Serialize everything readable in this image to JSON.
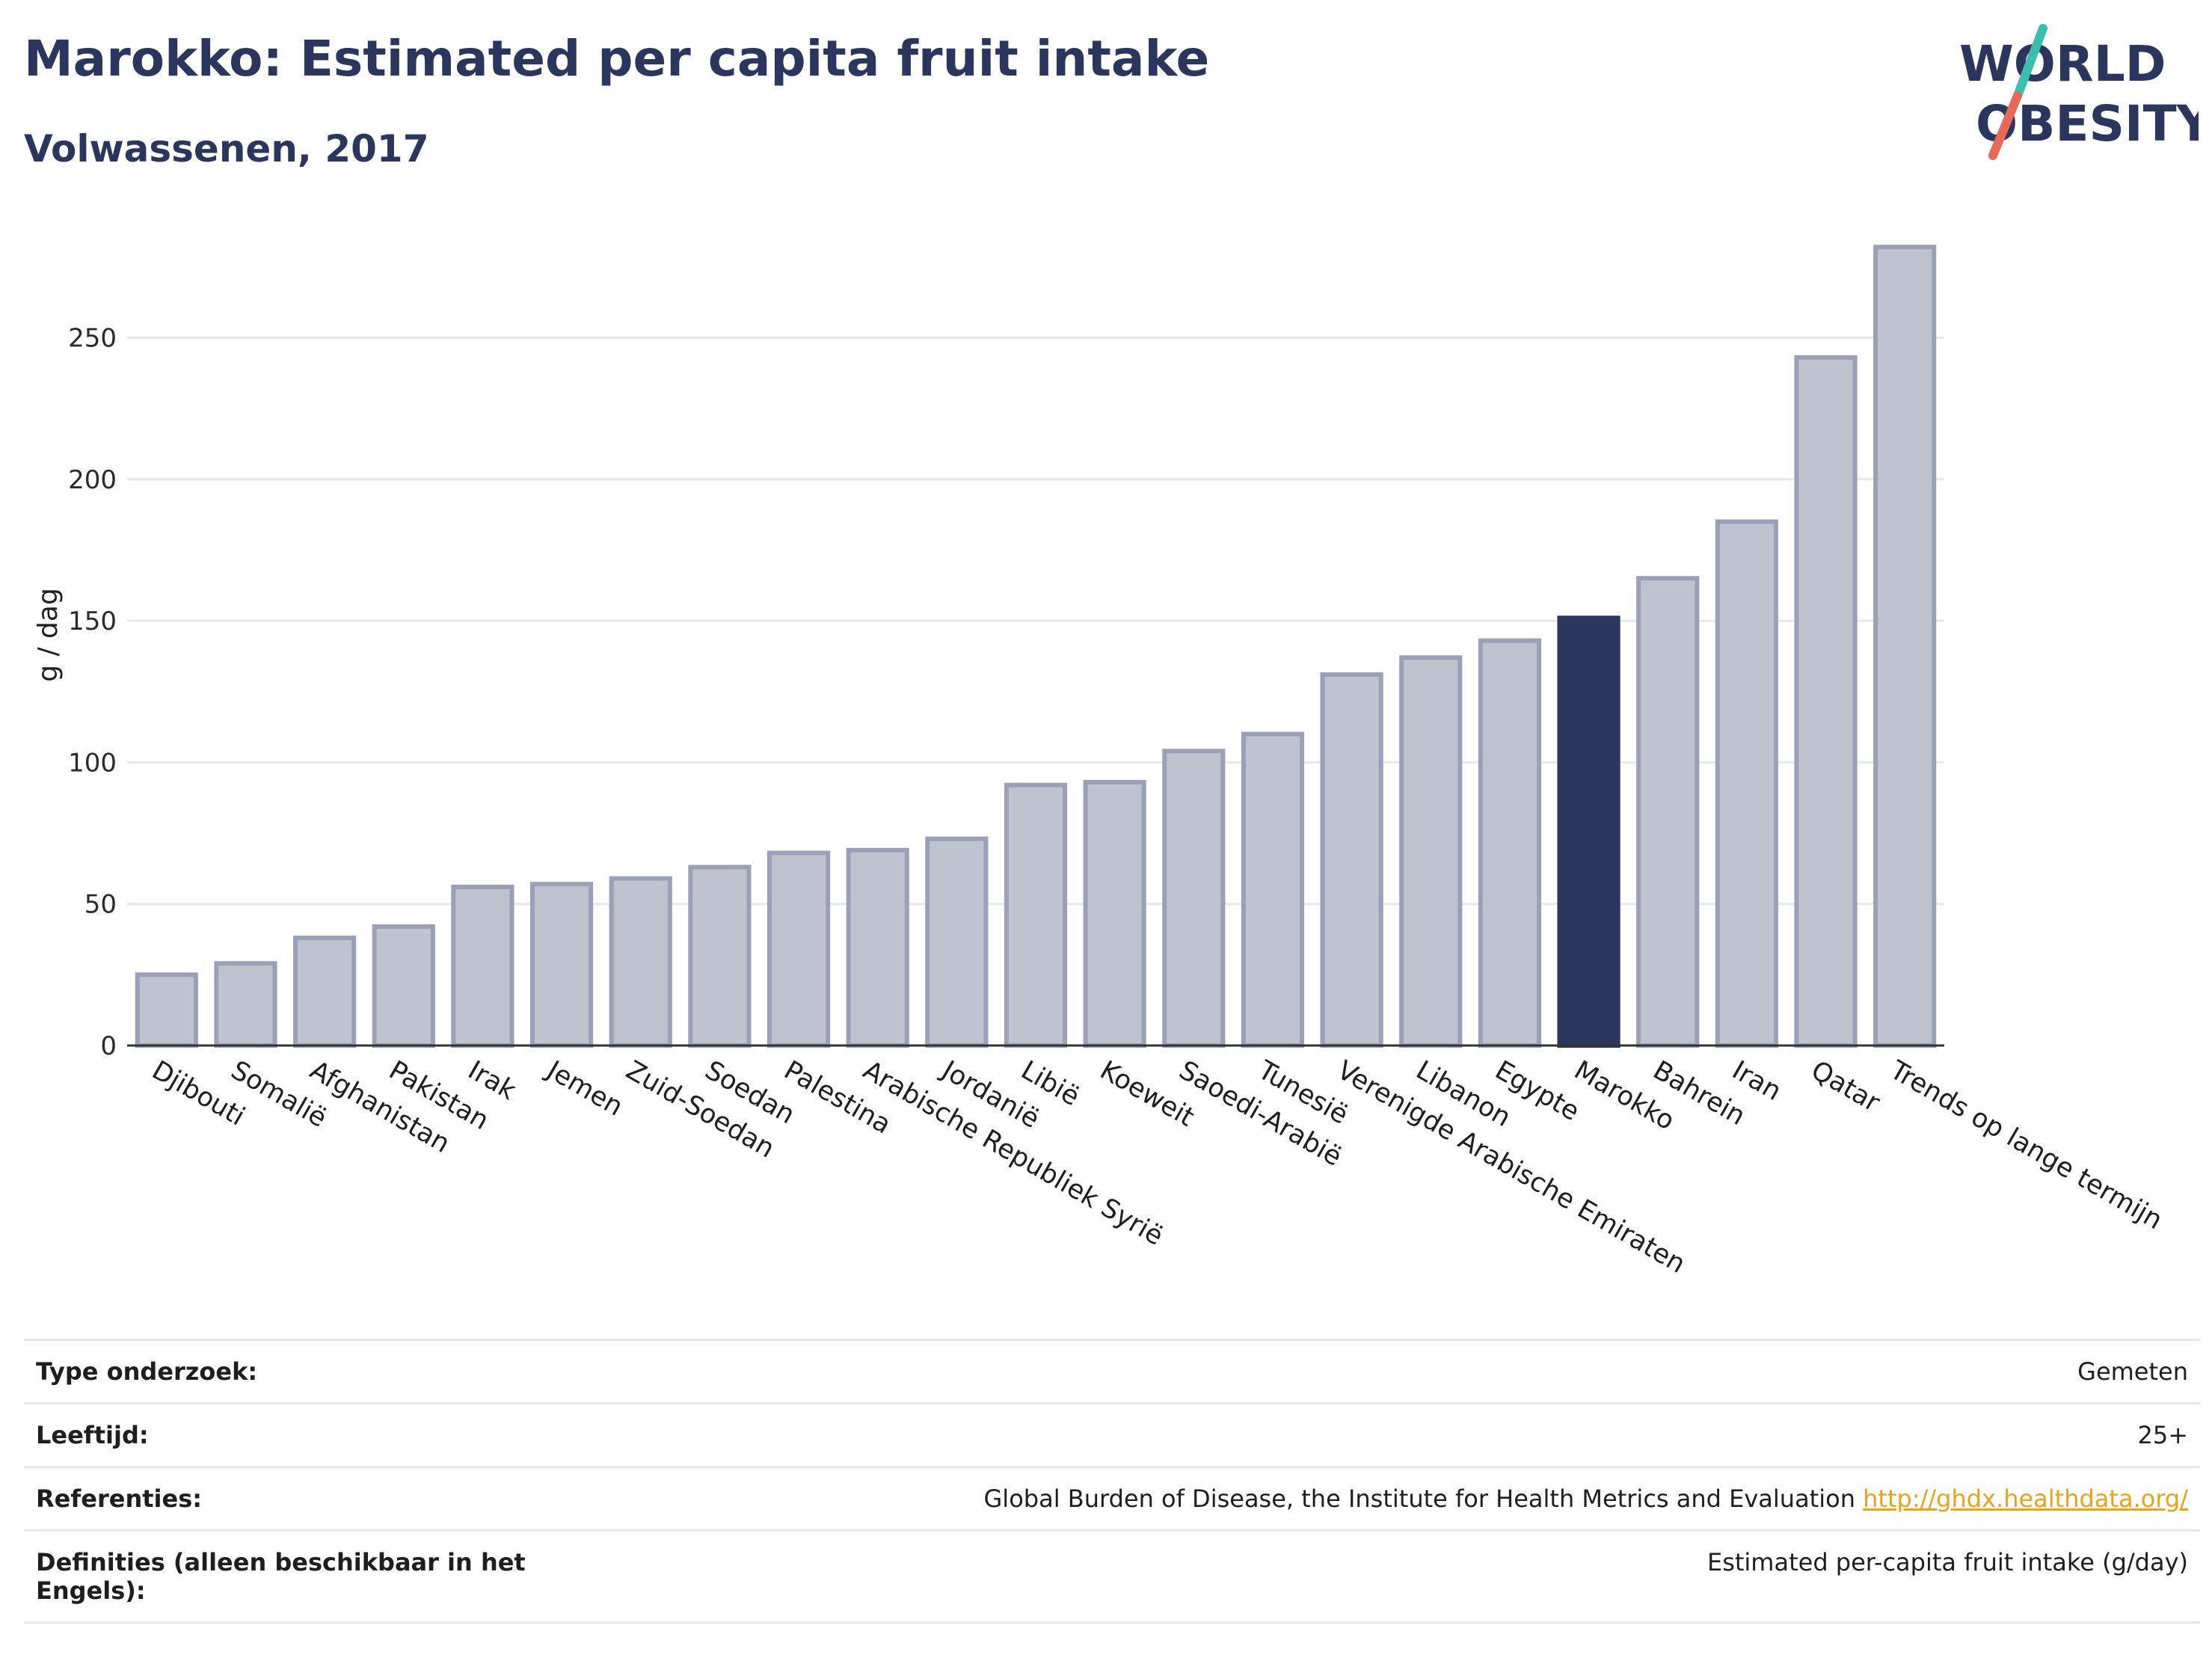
{
  "header": {
    "title": "Marokko: Estimated per capita fruit intake",
    "subtitle": "Volwassenen, 2017"
  },
  "logo": {
    "line1": "WORLD",
    "line2": "OBESITY",
    "colors": {
      "text": "#2b365f",
      "slash_top": "#3bbfad",
      "slash_bottom": "#e8685a"
    }
  },
  "chart_data": {
    "type": "bar",
    "ylabel": "g / dag",
    "ylim": [
      0,
      290
    ],
    "yticks": [
      0,
      50,
      100,
      150,
      200,
      250
    ],
    "grid": true,
    "highlight": "Marokko",
    "colors": {
      "bar": "#bfc3d0",
      "bar_border": "#9aa0b8",
      "highlight": "#2b365f"
    },
    "categories": [
      "Djibouti",
      "Somalië",
      "Afghanistan",
      "Pakistan",
      "Irak",
      "Jemen",
      "Zuid-Soedan",
      "Soedan",
      "Palestina",
      "Arabische Republiek Syrië",
      "Jordanië",
      "Libië",
      "Koeweit",
      "Saoedi-Arabië",
      "Tunesië",
      "Verenigde Arabische Emiraten",
      "Libanon",
      "Egypte",
      "Marokko",
      "Bahrein",
      "Iran",
      "Qatar",
      "Trends op lange termijn"
    ],
    "values": [
      25,
      29,
      38,
      42,
      56,
      57,
      59,
      63,
      68,
      69,
      73,
      92,
      93,
      104,
      110,
      131,
      137,
      143,
      151,
      165,
      185,
      243,
      282
    ]
  },
  "info": [
    {
      "key": "Type onderzoek:",
      "value": "Gemeten"
    },
    {
      "key": "Leeftijd:",
      "value": "25+"
    },
    {
      "key": "Referenties:",
      "value": "Global Burden of Disease, the Institute for Health Metrics and Evaluation",
      "link": "http://ghdx.healthdata.org/"
    },
    {
      "key": "Definities (alleen beschikbaar in het Engels):",
      "value": "Estimated per-capita fruit intake (g/day)"
    }
  ]
}
